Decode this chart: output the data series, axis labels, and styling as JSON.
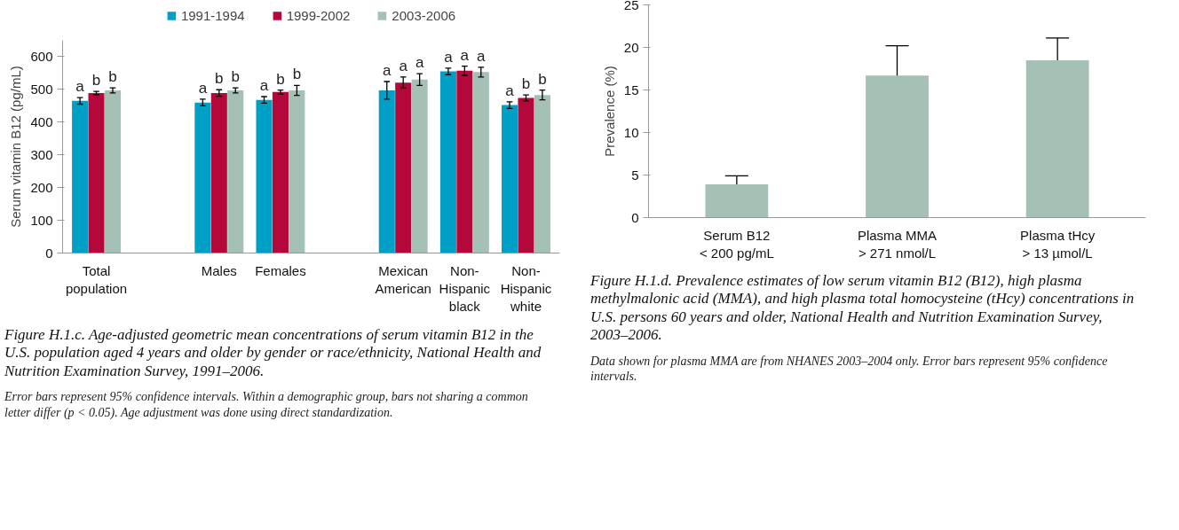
{
  "chart_data": [
    {
      "type": "bar",
      "title": "Figure H.1.c. Age-adjusted geometric mean concentrations of serum vitamin B12 in the U.S. population aged 4 years and older by gender or race/ethnicity, National Health and Nutrition Examination Survey, 1991–2006.",
      "ylabel": "Serum vitamin B12 (pg/mL)",
      "categories": [
        "Total\npopulation",
        null,
        "Males",
        "Females",
        null,
        "Mexican\nAmerican",
        "Non-\nHispanic\nblack",
        "Non-\nHispanic\nwhite"
      ],
      "series": [
        {
          "name": "1991-1994",
          "color": "#00a0c6",
          "values": [
            465,
            null,
            460,
            468,
            null,
            497,
            555,
            452
          ],
          "errors": [
            10,
            null,
            10,
            10,
            null,
            27,
            10,
            10
          ],
          "value_labels": [
            "a",
            null,
            "a",
            "a",
            null,
            "a",
            "a",
            "a"
          ]
        },
        {
          "name": "1999-2002",
          "color": "#b5083a",
          "values": [
            489,
            null,
            489,
            492,
            null,
            521,
            557,
            474
          ],
          "errors": [
            5,
            null,
            10,
            6,
            null,
            17,
            14,
            9
          ],
          "value_labels": [
            "b",
            null,
            "b",
            "b",
            null,
            "a",
            "a",
            "b"
          ]
        },
        {
          "name": "2003-2006",
          "color": "#a5c0b4",
          "values": [
            497,
            null,
            497,
            497,
            null,
            530,
            553,
            483
          ],
          "errors": [
            8,
            null,
            8,
            15,
            null,
            18,
            15,
            15
          ],
          "value_labels": [
            "b",
            null,
            "b",
            "b",
            null,
            "a",
            "a",
            "b"
          ]
        }
      ],
      "ylim": [
        0,
        650
      ],
      "yticks": [
        0,
        100,
        200,
        300,
        400,
        500,
        600
      ],
      "grid": false,
      "legend": "top",
      "annotations": [
        "Error bars represent 95% confidence intervals. Within a demographic group, bars not sharing a common letter differ (p < 0.05). Age adjustment was done using direct standardization."
      ]
    },
    {
      "type": "bar",
      "title": "Figure H.1.d. Prevalence estimates of low serum vitamin B12 (B12), high plasma methylmalonic acid (MMA), and high plasma total homocysteine (tHcy) concentrations in U.S. persons 60 years and older, National Health and Nutrition Examination Survey, 2003–2006.",
      "ylabel": "Prevalence (%)",
      "categories": [
        "Serum B12\n< 200 pg/mL",
        "Plasma MMA\n> 271 nmol/L",
        "Plasma tHcy\n> 13 µmol/L"
      ],
      "series": [
        {
          "color": "#a5c0b4",
          "values": [
            3.9,
            16.7,
            18.5
          ],
          "errors": [
            [
              3.9,
              4.9
            ],
            [
              16.7,
              20.2
            ],
            [
              18.5,
              21.1
            ]
          ]
        }
      ],
      "ylim": [
        0,
        25
      ],
      "yticks": [
        0,
        5,
        10,
        15,
        20,
        25
      ],
      "grid": false,
      "legend": false,
      "annotations": [
        "Data shown for plasma MMA are from NHANES 2003–2004 only. Error bars represent 95% confidence intervals."
      ]
    }
  ]
}
